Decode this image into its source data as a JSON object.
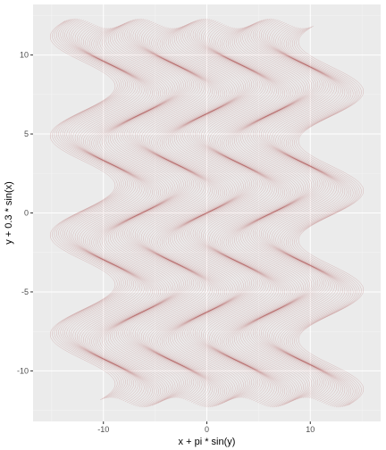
{
  "chart_data": {
    "type": "line",
    "title": "",
    "xlabel": "x + pi * sin(y)",
    "ylabel": "y + 0.3 * sin(x)",
    "xlim": [
      -16.8,
      16.8
    ],
    "ylim": [
      -13.2,
      13.2
    ],
    "x_ticks": [
      -10,
      0,
      10
    ],
    "x_tick_labels": [
      "-10",
      "0",
      "10"
    ],
    "y_ticks": [
      -10,
      -5,
      0,
      5,
      10
    ],
    "y_tick_labels": [
      "-10",
      "-5",
      "0",
      "5",
      "10"
    ],
    "grid": true,
    "legend": "none",
    "series": [
      {
        "family": "zig-zag curves",
        "x_equals": "x + pi * sin(y)",
        "y_equals": "y + 0.3 * sin(x)",
        "x_range": [
          -12,
          12
        ],
        "y_range": [
          -12,
          12
        ],
        "count": 121
      }
    ],
    "colors": {
      "panel_background": "#ebebeb",
      "grid_major": "#ffffff",
      "grid_minor": "#f4f4f4",
      "line": "#8b0000"
    }
  }
}
